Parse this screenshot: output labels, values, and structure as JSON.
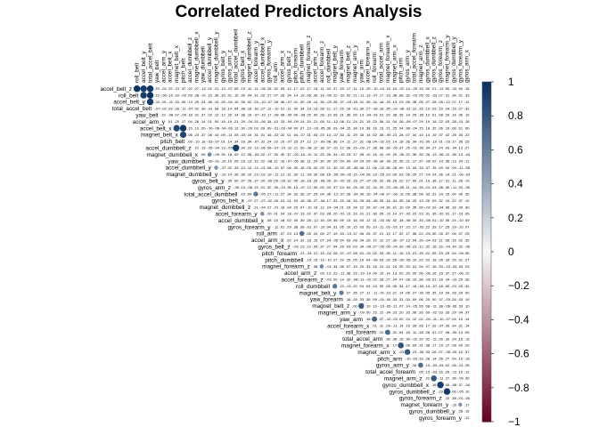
{
  "chart_data": {
    "type": "heatmap",
    "title": "Correlated Predictors Analysis",
    "shape": "upper-triangle",
    "row_labels": [
      "accel_belt_z",
      "roll_belt",
      "accel_belt_y",
      "total_accel_belt",
      "yaw_belt",
      "accel_arm_y",
      "accel_belt_x",
      "magnet_belt_x",
      "pitch_belt",
      "accel_dumbbell_z",
      "magnet_dumbbell_x",
      "yaw_dumbbell",
      "accel_dumbbell_y",
      "magnet_dumbbell_y",
      "gyros_belt_y",
      "gyros_arm_z",
      "total_accel_dumbbell",
      "gyros_belt_x",
      "magnet_dumbbell_z",
      "accel_forearm_y",
      "accel_dumbbell_x",
      "gyros_forearm_y",
      "roll_arm",
      "accel_arm_x",
      "gyros_belt_z",
      "pitch_forearm",
      "pitch_dumbbell",
      "magnet_forearm_z",
      "accel_arm_z",
      "accel_forearm_z",
      "roll_dumbbell",
      "magnet_belt_y",
      "yaw_forearm",
      "magnet_belt_z",
      "magnet_arm_y",
      "yaw_arm",
      "accel_forearm_x",
      "roll_forearm",
      "total_accel_arm",
      "magnet_forearm_x",
      "magnet_arm_x",
      "pitch_arm",
      "gyros_arm_y",
      "total_accel_forearm",
      "magnet_arm_z",
      "gyros_dumbbell_x",
      "gyros_dumbbell_z",
      "gyros_forearm_z",
      "magnet_forearm_y",
      "gyros_dumbbell_y",
      "gyros_forearm_y2"
    ],
    "col_labels": [
      "roll_belt",
      "accel_belt_y",
      "total_accel_belt",
      "yaw_belt",
      "accel_arm_y",
      "accel_belt_x",
      "magnet_belt_x",
      "pitch_belt",
      "accel_dumbbell_z",
      "magnet_dumbbell_x",
      "yaw_dumbbell",
      "accel_dumbbell_y",
      "magnet_dumbbell_y",
      "gyros_belt_y",
      "gyros_arm_z",
      "total_accel_dumbbell",
      "gyros_belt_x",
      "magnet_dumbbell_z",
      "accel_forearm_y",
      "accel_dumbbell_x",
      "gyros_forearm_y",
      "roll_arm",
      "accel_arm_x",
      "gyros_belt_z",
      "pitch_forearm",
      "pitch_dumbbell",
      "magnet_forearm_z",
      "accel_arm_z",
      "accel_forearm_z",
      "roll_dumbbell",
      "magnet_belt_y",
      "yaw_forearm",
      "magnet_belt_z",
      "magnet_arm_y",
      "yaw_arm",
      "accel_forearm_x",
      "roll_forearm",
      "total_accel_arm",
      "magnet_forearm_x",
      "magnet_arm_x",
      "pitch_arm",
      "gyros_arm_y",
      "total_accel_forearm",
      "magnet_arm_z",
      "gyros_dumbbell_x",
      "gyros_dumbbell_z",
      "gyros_forearm_z",
      "magnet_forearm_y",
      "gyros_dumbbell_y",
      "gyros_forearm_y2",
      "gyros_arm_x"
    ],
    "display_row_labels": [
      "accel_belt_z",
      "roll_belt",
      "accel_belt_y",
      "total_accel_belt",
      "yaw_belt",
      "accel_arm_y",
      "accel_belt_x",
      "magnet_belt_x",
      "pitch_belt",
      "accel_dumbbell_z",
      "magnet_dumbbell_x",
      "yaw_dumbbell",
      "accel_dumbbell_y",
      "magnet_dumbbell_y",
      "gyros_belt_y",
      "gyros_arm_z",
      "total_accel_dumbbell",
      "gyros_belt_x",
      "magnet_dumbbell_z",
      "accel_forearm_y",
      "accel_dumbbell_x",
      "gyros_forearm_y",
      "roll_arm",
      "accel_arm_x",
      "gyros_belt_z",
      "pitch_forearm",
      "pitch_dumbbell",
      "magnet_forearm_z",
      "accel_arm_z",
      "accel_forearm_z",
      "roll_dumbbell",
      "magnet_belt_y",
      "yaw_forearm",
      "magnet_belt_z",
      "magnet_arm_y",
      "yaw_arm",
      "accel_forearm_x",
      "roll_forearm",
      "total_accel_arm",
      "magnet_forearm_x",
      "magnet_arm_x",
      "pitch_arm",
      "gyros_arm_y",
      "total_accel_forearm",
      "magnet_arm_z",
      "gyros_dumbbell_x",
      "gyros_dumbbell_z",
      "gyros_forearm_z",
      "magnet_forearm_y",
      "gyros_dumbbell_y",
      "gyros_forearm_y"
    ],
    "display_col_labels": [
      "roll_belt",
      "accel_belt_y",
      "total_accel_belt",
      "yaw_belt",
      "accel_arm_y",
      "accel_belt_x",
      "magnet_belt_x",
      "pitch_belt",
      "accel_dumbbell_z",
      "magnet_dumbbell_x",
      "yaw_dumbbell",
      "accel_dumbbell_y",
      "magnet_dumbbell_y",
      "gyros_belt_y",
      "gyros_arm_z",
      "total_accel_dumbbell",
      "gyros_belt_x",
      "magnet_dumbbell_z",
      "accel_forearm_y",
      "accel_dumbbell_x",
      "gyros_forearm_y",
      "roll_arm",
      "accel_arm_x",
      "gyros_belt_z",
      "pitch_forearm",
      "pitch_dumbbell",
      "magnet_forearm_z",
      "accel_arm_z",
      "accel_forearm_z",
      "roll_dumbbell",
      "magnet_belt_y",
      "yaw_forearm",
      "magnet_belt_z",
      "magnet_arm_y",
      "yaw_arm",
      "accel_forearm_x",
      "roll_forearm",
      "total_accel_arm",
      "magnet_forearm_x",
      "magnet_arm_x",
      "pitch_arm",
      "gyros_arm_y",
      "total_accel_forearm",
      "magnet_arm_z",
      "gyros_dumbbell_x",
      "gyros_dumbbell_z",
      "gyros_forearm_z",
      "magnet_forearm_y",
      "gyros_dumbbell_y",
      "gyros_forearm_y",
      "gyros_arm_x"
    ],
    "strong_correlations": [
      {
        "row": 0,
        "col": 0,
        "value": 0.98
      },
      {
        "row": 0,
        "col": 1,
        "value": 0.93
      },
      {
        "row": 0,
        "col": 2,
        "value": 0.97
      },
      {
        "row": 1,
        "col": 1,
        "value": 0.92
      },
      {
        "row": 1,
        "col": 2,
        "value": 0.98
      },
      {
        "row": 2,
        "col": 2,
        "value": 0.93
      },
      {
        "row": 4,
        "col": 4,
        "value": 0.21
      },
      {
        "row": 6,
        "col": 6,
        "value": 0.89
      },
      {
        "row": 6,
        "col": 7,
        "value": 0.97
      },
      {
        "row": 7,
        "col": 7,
        "value": 0.89
      },
      {
        "row": 9,
        "col": 9,
        "value": 0.21
      },
      {
        "row": 9,
        "col": 15,
        "value": 0.95
      },
      {
        "row": 10,
        "col": 11,
        "value": 0.55
      },
      {
        "row": 12,
        "col": 12,
        "value": 0.52
      },
      {
        "row": 16,
        "col": 18,
        "value": 0.65
      },
      {
        "row": 19,
        "col": 19,
        "value": 0.53
      },
      {
        "row": 22,
        "col": 25,
        "value": 0.68
      },
      {
        "row": 27,
        "col": 28,
        "value": 0.55
      },
      {
        "row": 30,
        "col": 30,
        "value": 0.64
      },
      {
        "row": 31,
        "col": 31,
        "value": 0.62
      },
      {
        "row": 33,
        "col": 34,
        "value": 0.78
      },
      {
        "row": 35,
        "col": 36,
        "value": 0.73
      },
      {
        "row": 37,
        "col": 38,
        "value": 0.71
      },
      {
        "row": 39,
        "col": 40,
        "value": 0.82
      },
      {
        "row": 40,
        "col": 41,
        "value": 0.79
      },
      {
        "row": 42,
        "col": 43,
        "value": 0.69
      },
      {
        "row": 44,
        "col": 45,
        "value": 0.81
      },
      {
        "row": 45,
        "col": 46,
        "value": 0.93
      },
      {
        "row": 46,
        "col": 47,
        "value": 0.95
      },
      {
        "row": 48,
        "col": 49,
        "value": 0.51
      }
    ],
    "legend": {
      "ticks": [
        1,
        0.8,
        0.6,
        0.4,
        0.2,
        0,
        -0.2,
        -0.4,
        -0.6,
        -0.8,
        -1
      ],
      "tick_labels": [
        "1",
        "0.8",
        "0.6",
        "0.4",
        "0.2",
        "0",
        "−0.2",
        "−0.4",
        "−0.6",
        "−0.8",
        "−1"
      ],
      "colors": {
        "pos": "#053061",
        "mid": "#f7f7f7",
        "neg": "#67001f"
      },
      "placement": "right"
    }
  }
}
